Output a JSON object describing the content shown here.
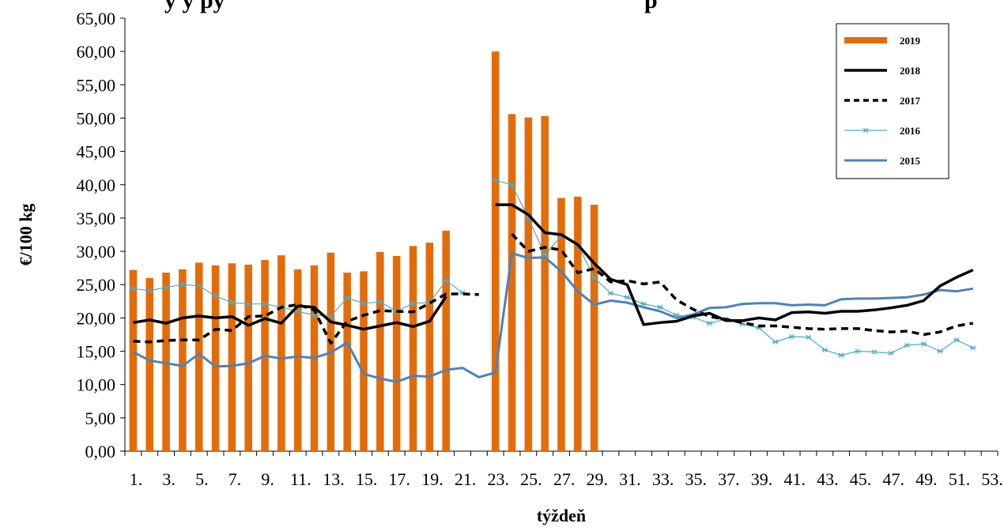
{
  "chart_data": {
    "type": "bar+line",
    "title": "",
    "title_fragment_visible": "y  y  py",
    "title_fragment_end": "p",
    "xlabel": "týždeň",
    "ylabel": "€/100 kg",
    "ylim": [
      0,
      65
    ],
    "y_ticks": [
      "0,00",
      "5,00",
      "10,00",
      "15,00",
      "20,00",
      "25,00",
      "30,00",
      "35,00",
      "40,00",
      "45,00",
      "50,00",
      "55,00",
      "60,00",
      "65,00"
    ],
    "x_tick_labels": [
      "1.",
      "3.",
      "5.",
      "7.",
      "9.",
      "11.",
      "13.",
      "15.",
      "17.",
      "19.",
      "21.",
      "23.",
      "25.",
      "27.",
      "29.",
      "31.",
      "33.",
      "35.",
      "37.",
      "39.",
      "41.",
      "43.",
      "45.",
      "47.",
      "49.",
      "51.",
      "53."
    ],
    "weeks": 53,
    "legend_position": "top-right",
    "series": [
      {
        "name": "2019",
        "kind": "bar",
        "color": "#E36C0A",
        "values": [
          27.2,
          26.0,
          26.8,
          27.3,
          28.3,
          27.9,
          28.2,
          28.0,
          28.7,
          29.4,
          27.3,
          27.9,
          29.8,
          26.8,
          27.0,
          29.9,
          29.3,
          30.8,
          31.3,
          33.1,
          null,
          null,
          60.0,
          50.6,
          50.1,
          50.3,
          38.0,
          38.2,
          37.0,
          null,
          null,
          null,
          null,
          null,
          null,
          null,
          null,
          null,
          null,
          null,
          null,
          null,
          null,
          null,
          null,
          null,
          null,
          null,
          null,
          null,
          null,
          null,
          null
        ]
      },
      {
        "name": "2018",
        "kind": "line",
        "style": "solid-thick",
        "color": "#000000",
        "values": [
          19.3,
          19.7,
          19.2,
          20.0,
          20.3,
          20.0,
          20.2,
          18.9,
          19.9,
          19.2,
          21.8,
          21.6,
          19.4,
          18.9,
          18.3,
          18.8,
          19.3,
          18.7,
          19.5,
          23.2,
          null,
          null,
          37.0,
          37.0,
          35.5,
          32.8,
          32.5,
          31.0,
          28.2,
          25.8,
          25.0,
          19.0,
          19.3,
          19.5,
          20.3,
          20.7,
          19.6,
          19.6,
          20.0,
          19.7,
          20.8,
          20.9,
          20.7,
          21.0,
          21.0,
          21.2,
          21.5,
          21.9,
          22.6,
          24.8,
          26.1,
          27.2,
          null
        ]
      },
      {
        "name": "2017",
        "kind": "line",
        "style": "dashed-thick",
        "color": "#000000",
        "values": [
          16.5,
          16.4,
          16.6,
          16.7,
          16.7,
          18.3,
          18.1,
          20.2,
          20.3,
          21.6,
          22.0,
          21.2,
          16.2,
          19.5,
          20.4,
          21.1,
          21.0,
          20.9,
          22.2,
          23.6,
          23.6,
          23.5,
          null,
          32.6,
          30.0,
          30.6,
          30.2,
          26.8,
          27.4,
          25.4,
          25.6,
          25.1,
          25.4,
          22.7,
          21.3,
          20.2,
          19.8,
          19.3,
          18.8,
          18.8,
          18.6,
          18.4,
          18.3,
          18.4,
          18.4,
          18.1,
          17.9,
          18.0,
          17.5,
          17.9,
          18.8,
          19.2,
          null
        ]
      },
      {
        "name": "2016",
        "kind": "line",
        "style": "thin-star",
        "color": "#4BACC6",
        "values": [
          24.4,
          24.1,
          24.6,
          25.0,
          24.8,
          23.3,
          22.3,
          22.1,
          22.1,
          21.6,
          21.0,
          20.4,
          20.3,
          23.0,
          22.2,
          22.4,
          21.0,
          22.2,
          22.3,
          25.6,
          23.8,
          null,
          40.7,
          40.0,
          35.0,
          29.5,
          32.3,
          31.0,
          26.0,
          23.7,
          23.1,
          22.1,
          21.6,
          20.4,
          20.1,
          19.2,
          19.8,
          19.1,
          18.5,
          16.4,
          17.2,
          17.1,
          15.2,
          14.4,
          15.0,
          14.9,
          14.7,
          15.9,
          16.1,
          15.0,
          16.7,
          15.5,
          null
        ]
      },
      {
        "name": "2015",
        "kind": "line",
        "style": "solid",
        "color": "#4F81BD",
        "values": [
          14.9,
          13.6,
          13.2,
          12.8,
          14.6,
          12.7,
          12.8,
          13.2,
          14.3,
          13.9,
          14.2,
          14.0,
          14.8,
          16.3,
          11.6,
          10.9,
          10.4,
          11.3,
          11.2,
          12.2,
          12.5,
          11.1,
          11.8,
          29.7,
          29.0,
          29.1,
          27.0,
          24.0,
          22.0,
          22.6,
          22.3,
          21.6,
          21.0,
          20.0,
          20.5,
          21.5,
          21.6,
          22.1,
          22.2,
          22.2,
          21.9,
          22.0,
          21.9,
          22.8,
          22.9,
          22.9,
          23.0,
          23.1,
          23.5,
          24.2,
          24.0,
          24.4,
          null
        ]
      }
    ]
  }
}
